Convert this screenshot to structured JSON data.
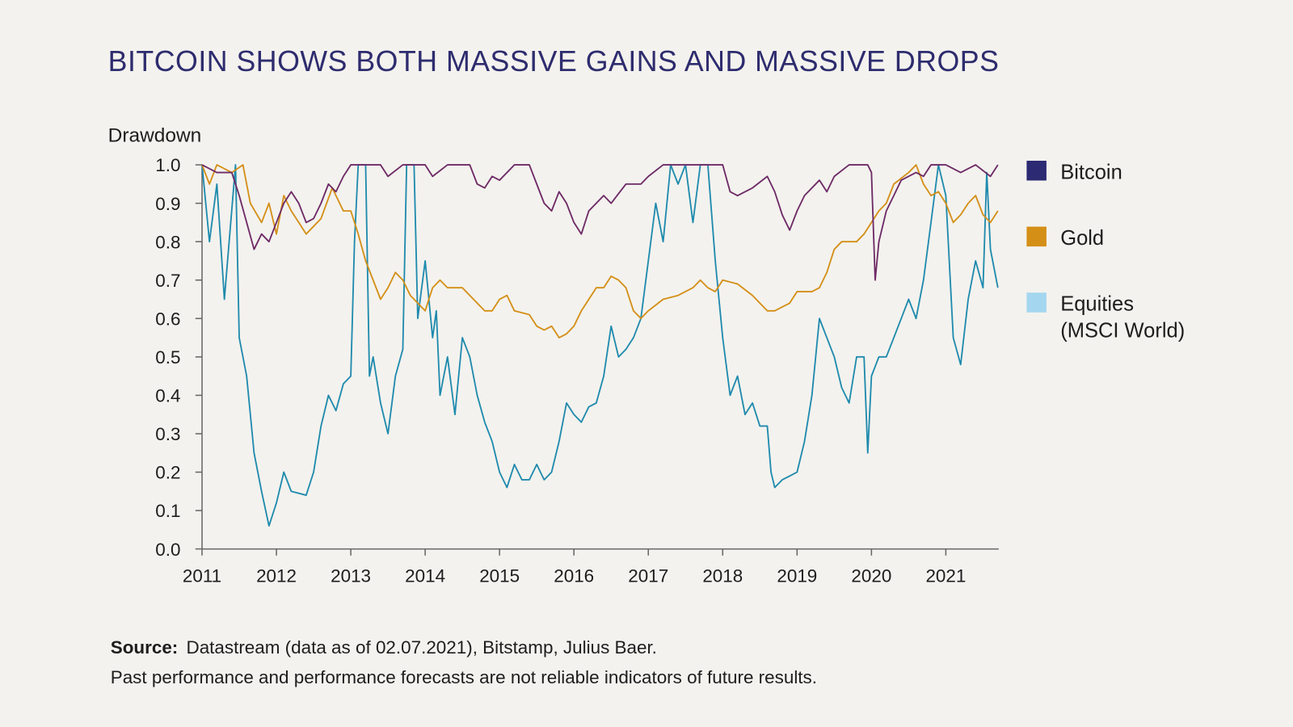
{
  "chart_data": {
    "type": "line",
    "title": "BITCOIN SHOWS BOTH MASSIVE GAINS AND MASSIVE DROPS",
    "ylabel": "Drawdown",
    "xlabel": "",
    "xlim": [
      2011,
      2021.7
    ],
    "ylim": [
      0,
      1
    ],
    "x_ticks": [
      "2011",
      "2012",
      "2013",
      "2014",
      "2015",
      "2016",
      "2017",
      "2018",
      "2019",
      "2020",
      "2021"
    ],
    "y_ticks": [
      "0.0",
      "0.1",
      "0.2",
      "0.3",
      "0.4",
      "0.5",
      "0.6",
      "0.7",
      "0.8",
      "0.9",
      "1.0"
    ],
    "grid": false,
    "legend_position": "right",
    "legend": [
      {
        "label": "Bitcoin",
        "color": "#2b2a72"
      },
      {
        "label": "Gold",
        "color": "#d48f17"
      },
      {
        "label": "Equities",
        "label2": "(MSCI World)",
        "color": "#a4d6ef"
      }
    ],
    "series": [
      {
        "name": "Bitcoin",
        "color": "#1f8aad",
        "x": [
          2011.0,
          2011.1,
          2011.2,
          2011.3,
          2011.45,
          2011.5,
          2011.6,
          2011.7,
          2011.8,
          2011.9,
          2012.0,
          2012.1,
          2012.2,
          2012.4,
          2012.5,
          2012.6,
          2012.7,
          2012.8,
          2012.9,
          2013.0,
          2013.05,
          2013.1,
          2013.2,
          2013.25,
          2013.3,
          2013.4,
          2013.5,
          2013.6,
          2013.7,
          2013.75,
          2013.85,
          2013.9,
          2014.0,
          2014.1,
          2014.15,
          2014.2,
          2014.3,
          2014.4,
          2014.5,
          2014.6,
          2014.7,
          2014.8,
          2014.9,
          2015.0,
          2015.1,
          2015.2,
          2015.3,
          2015.4,
          2015.5,
          2015.6,
          2015.7,
          2015.8,
          2015.9,
          2016.0,
          2016.1,
          2016.2,
          2016.3,
          2016.4,
          2016.5,
          2016.6,
          2016.7,
          2016.8,
          2016.9,
          2017.0,
          2017.1,
          2017.2,
          2017.3,
          2017.4,
          2017.5,
          2017.6,
          2017.7,
          2017.8,
          2017.9,
          2018.0,
          2018.1,
          2018.2,
          2018.3,
          2018.4,
          2018.5,
          2018.6,
          2018.65,
          2018.7,
          2018.8,
          2018.9,
          2019.0,
          2019.1,
          2019.2,
          2019.3,
          2019.4,
          2019.5,
          2019.6,
          2019.7,
          2019.8,
          2019.9,
          2019.95,
          2020.0,
          2020.1,
          2020.2,
          2020.3,
          2020.4,
          2020.5,
          2020.6,
          2020.7,
          2020.8,
          2020.9,
          2021.0,
          2021.1,
          2021.2,
          2021.3,
          2021.4,
          2021.5,
          2021.55,
          2021.6,
          2021.7
        ],
        "values": [
          1.0,
          0.8,
          0.95,
          0.65,
          1.0,
          0.55,
          0.45,
          0.25,
          0.15,
          0.06,
          0.12,
          0.2,
          0.15,
          0.14,
          0.2,
          0.32,
          0.4,
          0.36,
          0.43,
          0.45,
          0.8,
          1.0,
          1.0,
          0.45,
          0.5,
          0.38,
          0.3,
          0.45,
          0.52,
          1.0,
          1.0,
          0.6,
          0.75,
          0.55,
          0.62,
          0.4,
          0.5,
          0.35,
          0.55,
          0.5,
          0.4,
          0.33,
          0.28,
          0.2,
          0.16,
          0.22,
          0.18,
          0.18,
          0.22,
          0.18,
          0.2,
          0.28,
          0.38,
          0.35,
          0.33,
          0.37,
          0.38,
          0.45,
          0.58,
          0.5,
          0.52,
          0.55,
          0.6,
          0.75,
          0.9,
          0.8,
          1.0,
          0.95,
          1.0,
          0.85,
          1.0,
          1.0,
          0.75,
          0.55,
          0.4,
          0.45,
          0.35,
          0.38,
          0.32,
          0.32,
          0.2,
          0.16,
          0.18,
          0.19,
          0.2,
          0.28,
          0.4,
          0.6,
          0.55,
          0.5,
          0.42,
          0.38,
          0.5,
          0.5,
          0.25,
          0.45,
          0.5,
          0.5,
          0.55,
          0.6,
          0.65,
          0.6,
          0.7,
          0.85,
          1.0,
          0.92,
          0.55,
          0.48,
          0.65,
          0.75,
          0.68,
          0.98,
          0.78,
          0.68
        ]
      },
      {
        "name": "Gold",
        "color": "#d48f17",
        "x": [
          2011.0,
          2011.1,
          2011.2,
          2011.4,
          2011.55,
          2011.65,
          2011.8,
          2011.9,
          2012.0,
          2012.1,
          2012.2,
          2012.3,
          2012.4,
          2012.6,
          2012.75,
          2012.9,
          2013.0,
          2013.1,
          2013.2,
          2013.3,
          2013.4,
          2013.5,
          2013.6,
          2013.7,
          2013.8,
          2014.0,
          2014.1,
          2014.2,
          2014.3,
          2014.5,
          2014.6,
          2014.8,
          2014.9,
          2015.0,
          2015.1,
          2015.2,
          2015.4,
          2015.5,
          2015.6,
          2015.7,
          2015.8,
          2015.9,
          2016.0,
          2016.1,
          2016.3,
          2016.4,
          2016.5,
          2016.6,
          2016.7,
          2016.8,
          2016.9,
          2017.0,
          2017.2,
          2017.4,
          2017.6,
          2017.7,
          2017.8,
          2017.9,
          2018.0,
          2018.2,
          2018.4,
          2018.6,
          2018.7,
          2018.9,
          2019.0,
          2019.2,
          2019.3,
          2019.4,
          2019.5,
          2019.6,
          2019.8,
          2019.9,
          2020.0,
          2020.1,
          2020.2,
          2020.3,
          2020.5,
          2020.6,
          2020.7,
          2020.8,
          2020.9,
          2021.0,
          2021.1,
          2021.2,
          2021.3,
          2021.4,
          2021.5,
          2021.6,
          2021.7
        ],
        "values": [
          1.0,
          0.95,
          1.0,
          0.98,
          1.0,
          0.9,
          0.85,
          0.9,
          0.82,
          0.92,
          0.88,
          0.85,
          0.82,
          0.86,
          0.94,
          0.88,
          0.88,
          0.82,
          0.75,
          0.7,
          0.65,
          0.68,
          0.72,
          0.7,
          0.66,
          0.62,
          0.68,
          0.7,
          0.68,
          0.68,
          0.66,
          0.62,
          0.62,
          0.65,
          0.66,
          0.62,
          0.61,
          0.58,
          0.57,
          0.58,
          0.55,
          0.56,
          0.58,
          0.62,
          0.68,
          0.68,
          0.71,
          0.7,
          0.68,
          0.62,
          0.6,
          0.62,
          0.65,
          0.66,
          0.68,
          0.7,
          0.68,
          0.67,
          0.7,
          0.69,
          0.66,
          0.62,
          0.62,
          0.64,
          0.67,
          0.67,
          0.68,
          0.72,
          0.78,
          0.8,
          0.8,
          0.82,
          0.85,
          0.88,
          0.9,
          0.95,
          0.98,
          1.0,
          0.95,
          0.92,
          0.93,
          0.9,
          0.85,
          0.87,
          0.9,
          0.92,
          0.87,
          0.85,
          0.88
        ]
      },
      {
        "name": "Equities (MSCI World)",
        "color": "#6e2a66",
        "x": [
          2011.0,
          2011.2,
          2011.4,
          2011.5,
          2011.6,
          2011.7,
          2011.8,
          2011.9,
          2012.0,
          2012.1,
          2012.2,
          2012.3,
          2012.4,
          2012.5,
          2012.6,
          2012.7,
          2012.8,
          2012.9,
          2013.0,
          2013.4,
          2013.5,
          2013.7,
          2014.0,
          2014.1,
          2014.3,
          2014.6,
          2014.7,
          2014.8,
          2014.9,
          2015.0,
          2015.2,
          2015.4,
          2015.5,
          2015.6,
          2015.7,
          2015.8,
          2015.9,
          2016.0,
          2016.1,
          2016.2,
          2016.4,
          2016.5,
          2016.7,
          2016.9,
          2017.0,
          2017.2,
          2017.9,
          2018.0,
          2018.1,
          2018.2,
          2018.4,
          2018.6,
          2018.7,
          2018.8,
          2018.9,
          2019.0,
          2019.1,
          2019.3,
          2019.4,
          2019.5,
          2019.7,
          2019.95,
          2020.0,
          2020.05,
          2020.1,
          2020.2,
          2020.3,
          2020.4,
          2020.6,
          2020.7,
          2020.8,
          2021.0,
          2021.2,
          2021.4,
          2021.6,
          2021.7
        ],
        "values": [
          1.0,
          0.98,
          0.98,
          0.92,
          0.85,
          0.78,
          0.82,
          0.8,
          0.85,
          0.9,
          0.93,
          0.9,
          0.85,
          0.86,
          0.9,
          0.95,
          0.93,
          0.97,
          1.0,
          1.0,
          0.97,
          1.0,
          1.0,
          0.97,
          1.0,
          1.0,
          0.95,
          0.94,
          0.97,
          0.96,
          1.0,
          1.0,
          0.95,
          0.9,
          0.88,
          0.93,
          0.9,
          0.85,
          0.82,
          0.88,
          0.92,
          0.9,
          0.95,
          0.95,
          0.97,
          1.0,
          1.0,
          1.0,
          0.93,
          0.92,
          0.94,
          0.97,
          0.93,
          0.87,
          0.83,
          0.88,
          0.92,
          0.96,
          0.93,
          0.97,
          1.0,
          1.0,
          0.98,
          0.7,
          0.8,
          0.88,
          0.92,
          0.96,
          0.98,
          0.97,
          1.0,
          1.0,
          0.98,
          1.0,
          0.97,
          1.0
        ]
      }
    ]
  },
  "footer": {
    "source_label": "Source:",
    "source_text": "Datastream (data as of 02.07.2021), Bitstamp, Julius Baer.",
    "disclaimer": "Past performance and performance forecasts are not reliable indicators of future results."
  }
}
